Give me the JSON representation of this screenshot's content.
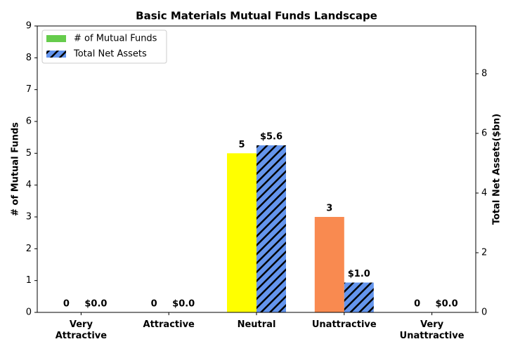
{
  "chart_data": {
    "type": "bar",
    "title": "Basic Materials Mutual Funds Landscape",
    "y_label": "# of Mutual Funds",
    "y2_label": "Total Net Assets($bn)",
    "categories": [
      "Very\nAttractive",
      "Attractive",
      "Neutral",
      "Unattractive",
      "Very\nUnattractive"
    ],
    "series": [
      {
        "name": "# of Mutual Funds",
        "color": "#66cc4c",
        "colors": [
          "#1a9850",
          "#66cc4c",
          "#ffff00",
          "#f98a50",
          "#e03020"
        ],
        "values": [
          0,
          0,
          5,
          3,
          0
        ]
      },
      {
        "name": "Total Net Assets",
        "color": "#6495ed",
        "hatch": true,
        "axis": "y2",
        "values": [
          0.0,
          0.0,
          5.6,
          1.0,
          0.0
        ],
        "value_labels": [
          "$0.0",
          "$0.0",
          "$5.6",
          "$1.0",
          "$0.0"
        ]
      }
    ],
    "ylim": [
      0,
      9
    ],
    "yticks": [
      0,
      1,
      2,
      3,
      4,
      5,
      6,
      7,
      8,
      9
    ],
    "y2lim": [
      0,
      9.6
    ],
    "y2ticks": [
      0,
      2,
      4,
      6,
      8
    ],
    "legend": "upper-left"
  }
}
